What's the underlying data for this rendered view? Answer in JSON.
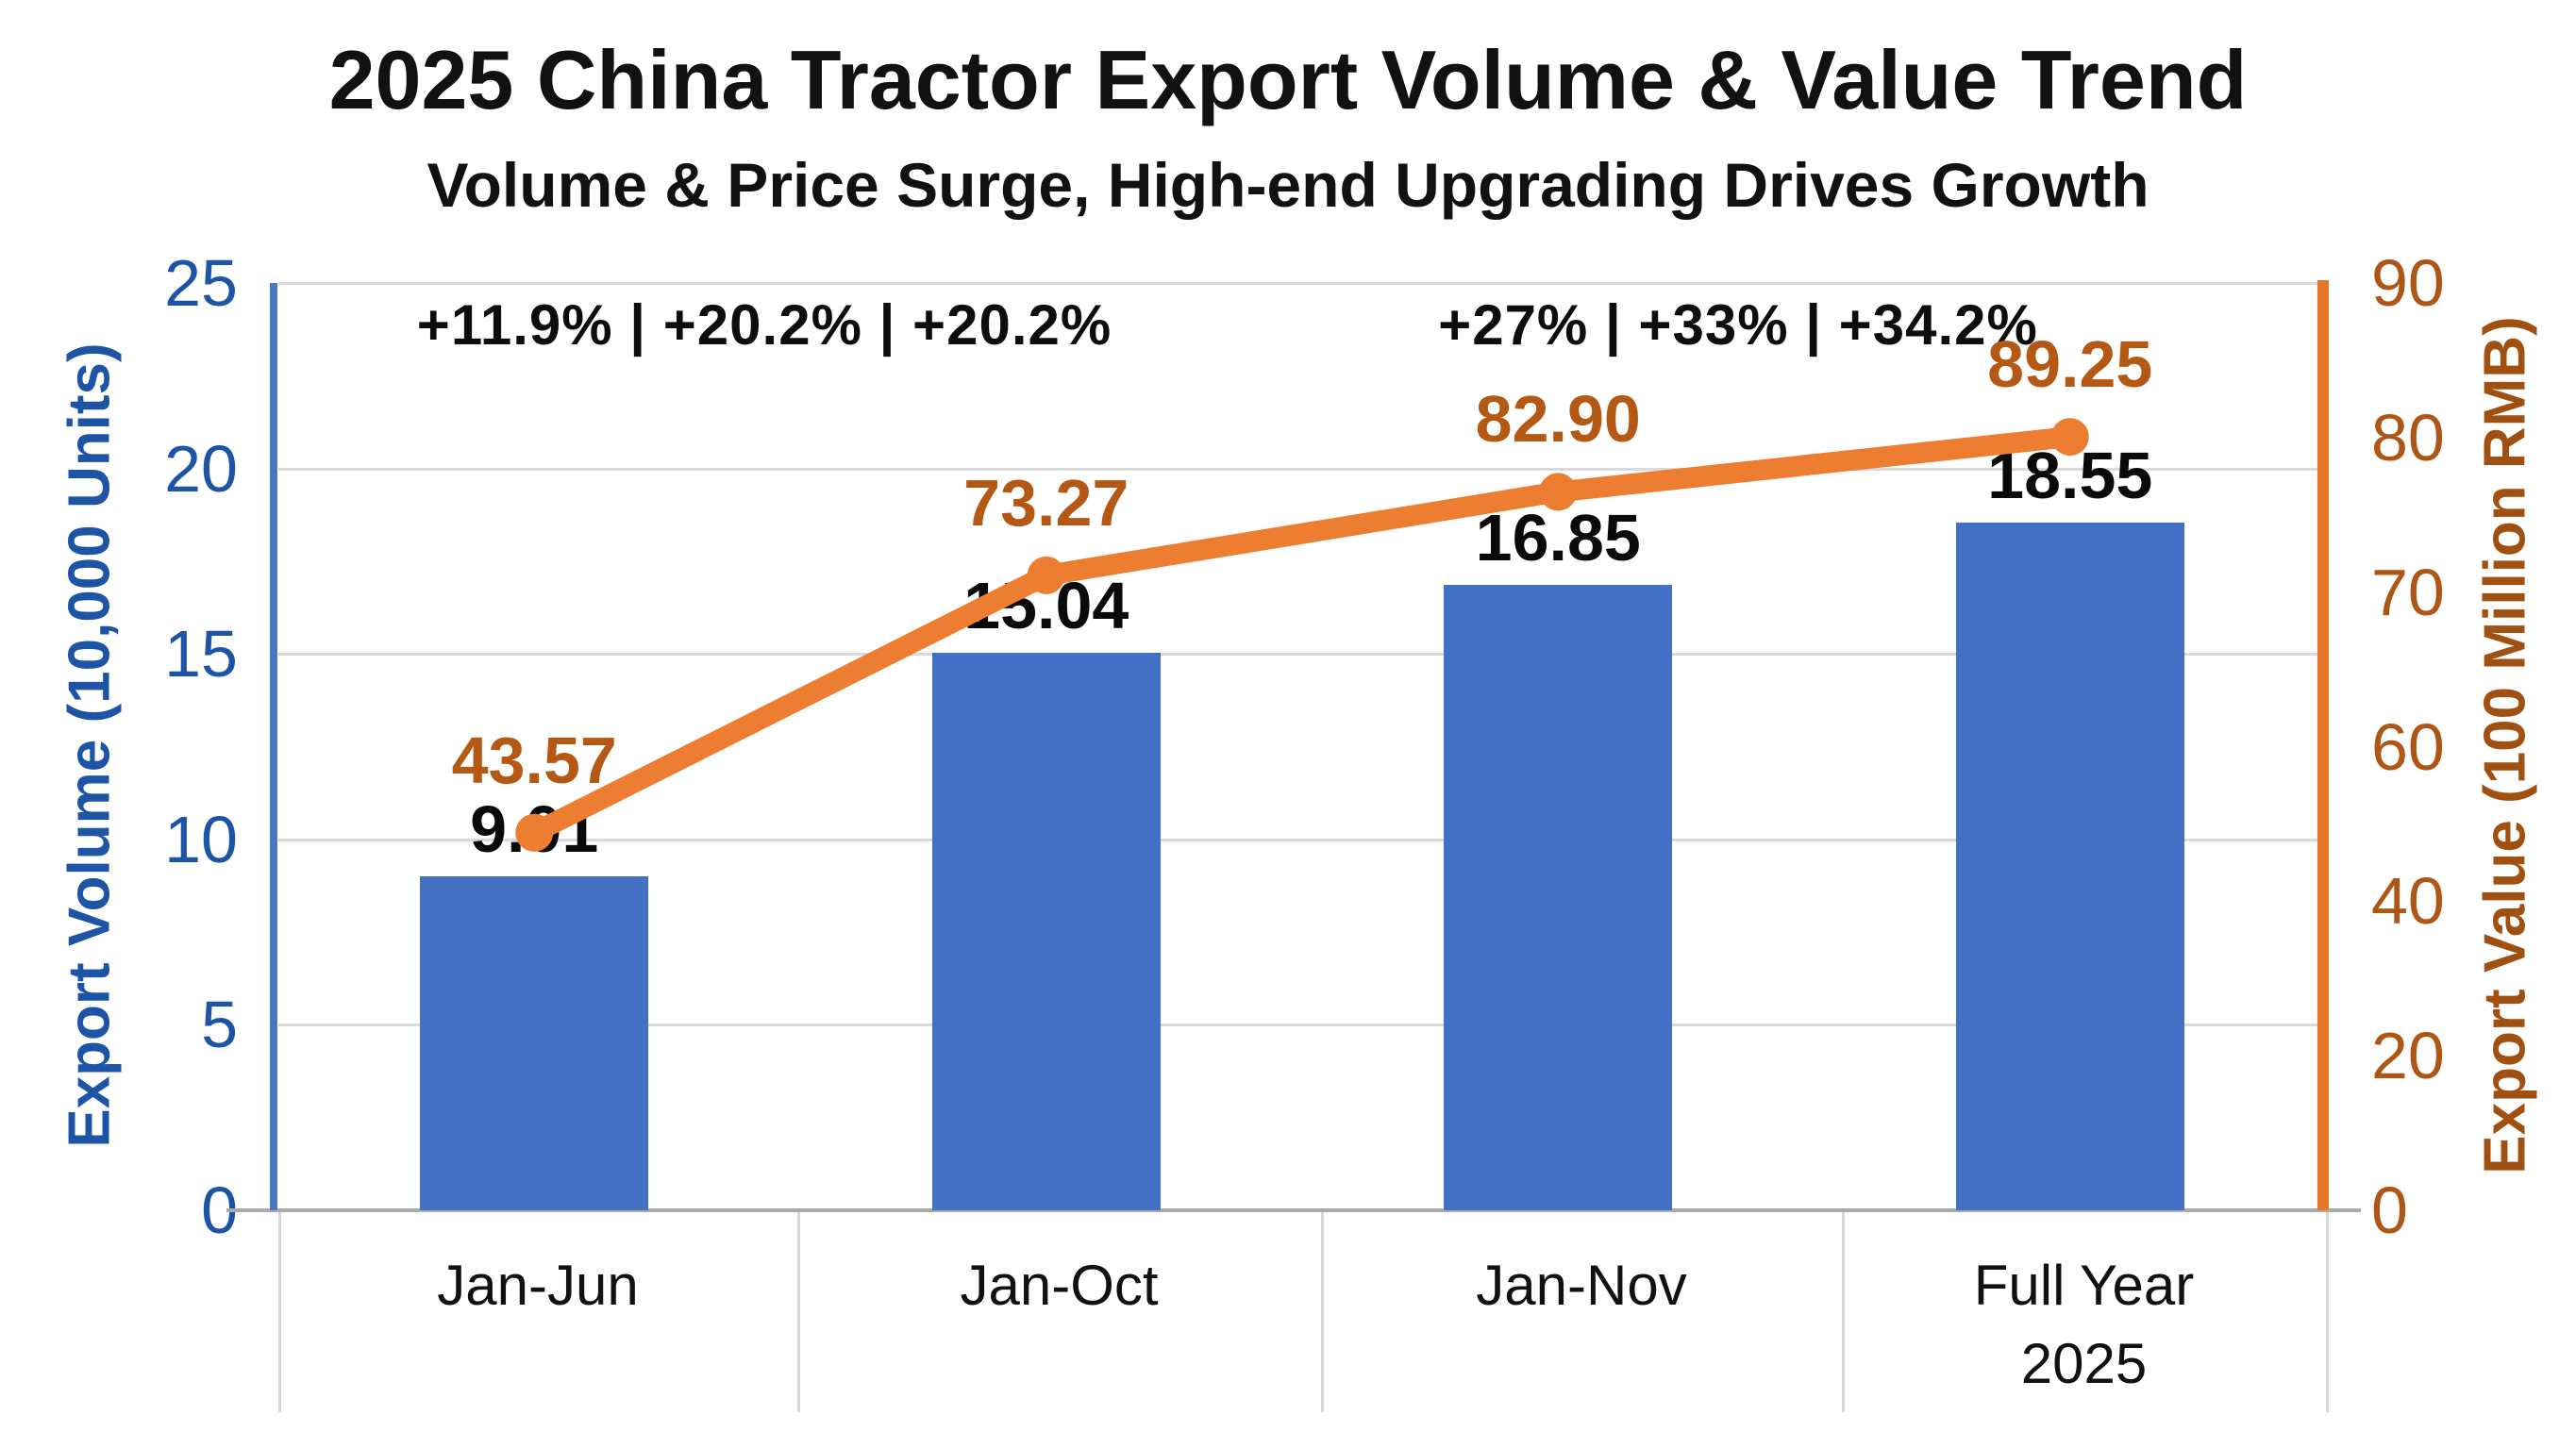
{
  "header": {
    "title": "2025 China Tractor Export Volume & Value Trend",
    "subtitle": "Volume & Price Surge, High-end Upgrading Drives Growth"
  },
  "annotations": {
    "left": "+11.9% | +20.2% | +20.2%",
    "right": "+27% | +33% | +34.2%"
  },
  "chart_data": {
    "type": "bar+line combo",
    "categories": [
      "Jan-Jun",
      "Jan-Oct",
      "Jan-Nov",
      "Full Year\n2025"
    ],
    "series": [
      {
        "name": "Export Volume",
        "type": "bar",
        "axis": "left",
        "color": "#4170C4",
        "values": [
          9.01,
          15.04,
          16.85,
          18.55
        ],
        "labels": [
          "9.01",
          "15.04",
          "16.85",
          "18.55"
        ]
      },
      {
        "name": "Export Value",
        "type": "line",
        "axis": "right",
        "color": "#ED7D31",
        "values": [
          43.57,
          73.27,
          82.9,
          89.25
        ],
        "labels": [
          "43.57",
          "73.27",
          "82.90",
          "89.25"
        ]
      }
    ],
    "axes": {
      "left": {
        "title": "Export Volume (10,000 Units)",
        "ticks": [
          25,
          20,
          15,
          10,
          5,
          0
        ],
        "range": [
          0,
          25
        ],
        "color": "#1E54A6"
      },
      "right": {
        "title": "Export Value (100 Million RMB)",
        "ticks": [
          90,
          80,
          70,
          60,
          40,
          20,
          0
        ],
        "range": [
          0,
          90
        ],
        "color": "#AD5615"
      }
    },
    "grid": true,
    "legend": "none",
    "colors": {
      "bar": "#4170C4",
      "line": "#ED7D31",
      "bar_label": "#0a0a0a",
      "line_label": "#B45814",
      "gridline": "#DADADA"
    }
  }
}
